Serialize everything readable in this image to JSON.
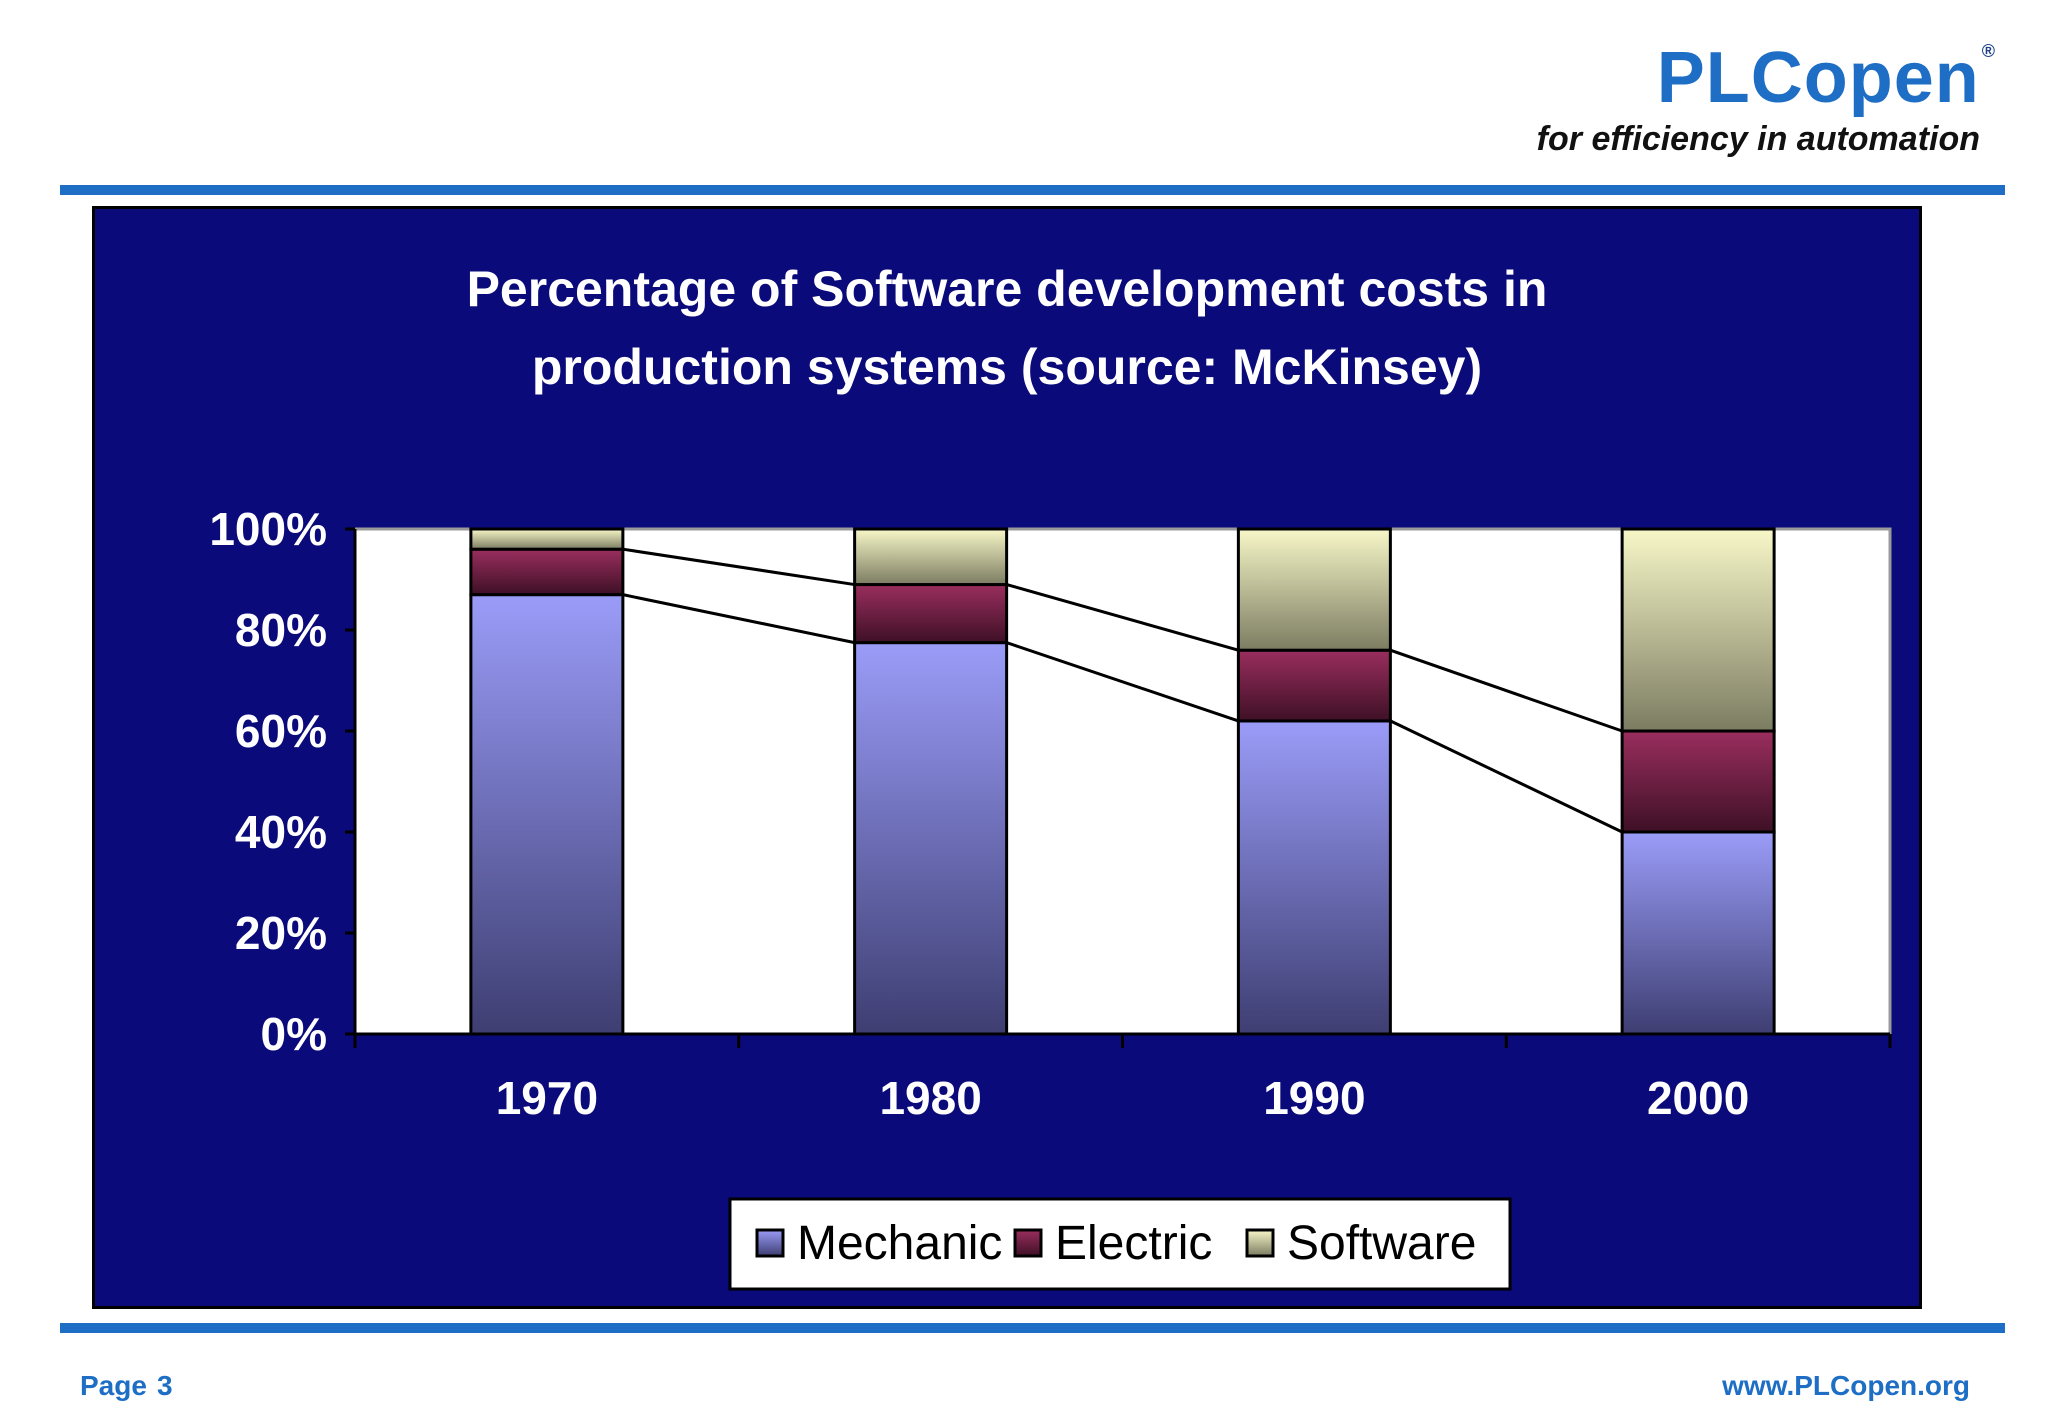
{
  "header": {
    "brand": "PLCopen",
    "registered": "®",
    "tagline": "for efficiency in automation"
  },
  "footer": {
    "page_label": "Page",
    "page_number": "3",
    "website": "www.PLCopen.org"
  },
  "colors": {
    "accent": "#1d6ec4",
    "panel_background": "#0a0a7a",
    "plot_background": "#ffffff",
    "mechanic": "#9a9cf8",
    "electric": "#9a2e5e",
    "software": "#f7f7c8"
  },
  "chart_data": {
    "type": "bar",
    "stacked": true,
    "title_lines": [
      "Percentage of Software development costs in",
      "production systems (source: McKinsey)"
    ],
    "categories": [
      "1970",
      "1980",
      "1990",
      "2000"
    ],
    "series": [
      {
        "name": "Mechanic",
        "values": [
          87,
          77.5,
          62,
          40
        ]
      },
      {
        "name": "Electric",
        "values": [
          9,
          11.5,
          14,
          20
        ]
      },
      {
        "name": "Software",
        "values": [
          4,
          11,
          24,
          40
        ]
      }
    ],
    "yaxis": {
      "min": 0,
      "max": 100,
      "step": 20,
      "tick_labels": [
        "0%",
        "20%",
        "40%",
        "60%",
        "80%",
        "100%"
      ]
    },
    "connector_lines": true,
    "legend_position": "bottom",
    "grid": false
  }
}
